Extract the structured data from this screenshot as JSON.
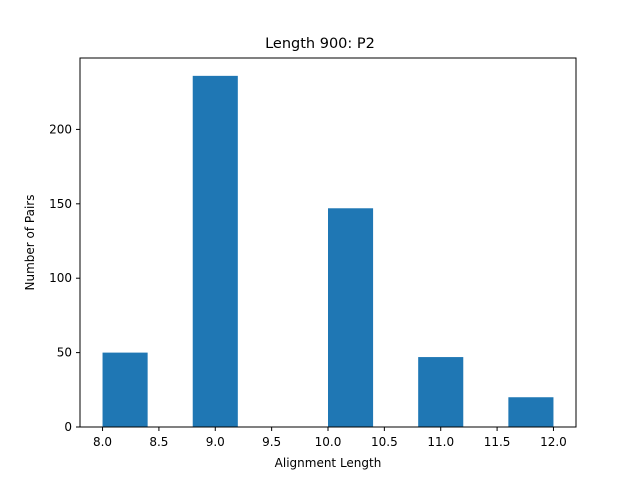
{
  "chart_data": {
    "type": "bar",
    "title": "Length 900: P2",
    "xlabel": "Alignment Length",
    "ylabel": "Number of Pairs",
    "xlim": [
      7.8,
      12.2
    ],
    "ylim": [
      0,
      248
    ],
    "xticks": [
      "8.0",
      "8.5",
      "9.0",
      "9.5",
      "10.0",
      "10.5",
      "11.0",
      "11.5",
      "12.0"
    ],
    "yticks": [
      "0",
      "50",
      "100",
      "150",
      "200"
    ],
    "bins": [
      {
        "start": 8.0,
        "end": 8.4,
        "count": 50
      },
      {
        "start": 8.4,
        "end": 8.8,
        "count": 0
      },
      {
        "start": 8.8,
        "end": 9.2,
        "count": 236
      },
      {
        "start": 9.2,
        "end": 9.6,
        "count": 0
      },
      {
        "start": 9.6,
        "end": 10.0,
        "count": 0
      },
      {
        "start": 10.0,
        "end": 10.4,
        "count": 147
      },
      {
        "start": 10.4,
        "end": 10.8,
        "count": 0
      },
      {
        "start": 10.8,
        "end": 11.2,
        "count": 47
      },
      {
        "start": 11.2,
        "end": 11.6,
        "count": 0
      },
      {
        "start": 11.6,
        "end": 12.0,
        "count": 20
      }
    ],
    "bar_color": "#1f77b4",
    "grid": false,
    "legend": false
  }
}
